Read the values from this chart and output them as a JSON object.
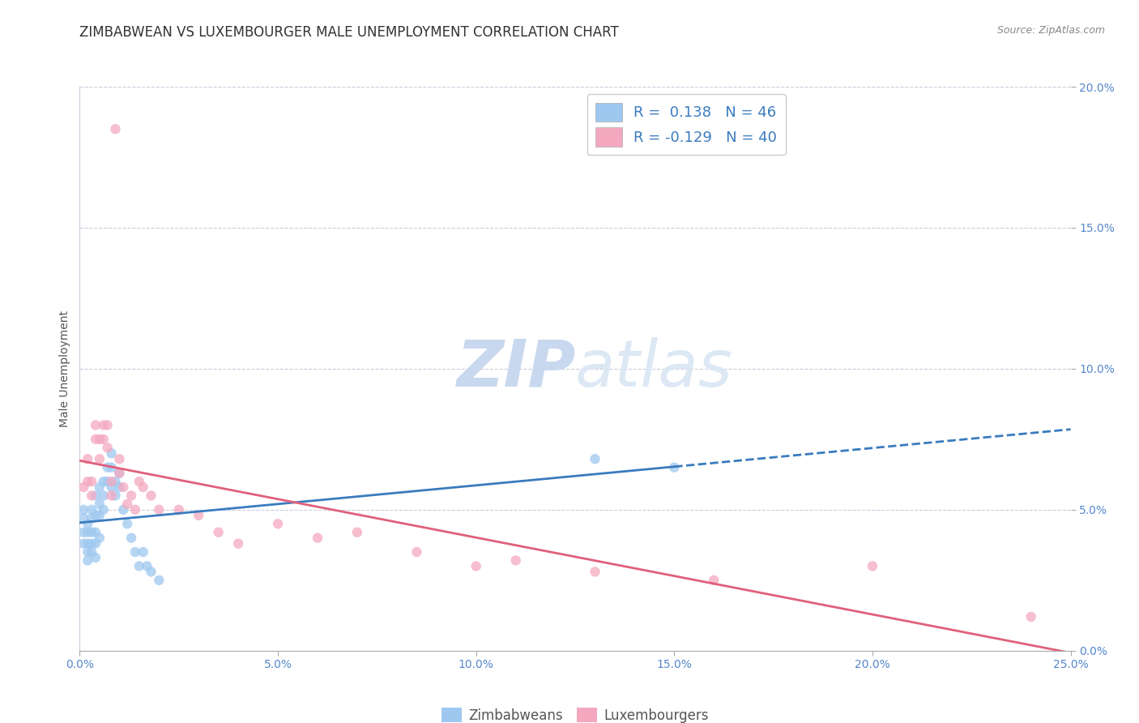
{
  "title": "ZIMBABWEAN VS LUXEMBOURGER MALE UNEMPLOYMENT CORRELATION CHART",
  "source": "Source: ZipAtlas.com",
  "ylabel_label": "Male Unemployment",
  "legend_labels": [
    "Zimbabweans",
    "Luxembourgers"
  ],
  "R_zimbabwean": 0.138,
  "N_zimbabwean": 46,
  "R_luxembourger": -0.129,
  "N_luxembourger": 40,
  "color_zimbabwean": "#9ec8f0",
  "color_luxembourger": "#f4a8c0",
  "color_line_zimbabwean": "#3a7bbf",
  "color_line_luxembourger": "#e0607a",
  "watermark_ZIP_color": "#c8d8ef",
  "watermark_atlas_color": "#c8d8ef",
  "title_fontsize": 12,
  "axis_tick_fontsize": 10,
  "legend_fontsize": 12,
  "background_color": "#ffffff",
  "grid_color": "#ccccdd",
  "xmin": 0.0,
  "xmax": 0.25,
  "ymin": 0.0,
  "ymax": 0.2,
  "x_ticks": [
    0.0,
    0.05,
    0.1,
    0.15,
    0.2,
    0.25
  ],
  "x_tick_labels": [
    "0.0%",
    "5.0%",
    "10.0%",
    "15.0%",
    "20.0%",
    "25.0%"
  ],
  "y_ticks": [
    0.0,
    0.05,
    0.1,
    0.15,
    0.2
  ],
  "y_tick_labels": [
    "0.0%",
    "5.0%",
    "10.0%",
    "15.0%",
    "20.0%"
  ],
  "zimbabwean_x": [
    0.001,
    0.001,
    0.001,
    0.001,
    0.002,
    0.002,
    0.002,
    0.002,
    0.002,
    0.003,
    0.003,
    0.003,
    0.003,
    0.003,
    0.004,
    0.004,
    0.004,
    0.004,
    0.004,
    0.005,
    0.005,
    0.005,
    0.005,
    0.006,
    0.006,
    0.006,
    0.007,
    0.007,
    0.008,
    0.008,
    0.008,
    0.009,
    0.009,
    0.01,
    0.01,
    0.011,
    0.012,
    0.013,
    0.014,
    0.015,
    0.016,
    0.017,
    0.018,
    0.02,
    0.13,
    0.15
  ],
  "zimbabwean_y": [
    0.05,
    0.047,
    0.042,
    0.038,
    0.045,
    0.042,
    0.038,
    0.035,
    0.032,
    0.05,
    0.047,
    0.042,
    0.038,
    0.035,
    0.055,
    0.048,
    0.042,
    0.038,
    0.033,
    0.058,
    0.052,
    0.048,
    0.04,
    0.06,
    0.055,
    0.05,
    0.065,
    0.06,
    0.07,
    0.065,
    0.058,
    0.06,
    0.055,
    0.063,
    0.058,
    0.05,
    0.045,
    0.04,
    0.035,
    0.03,
    0.035,
    0.03,
    0.028,
    0.025,
    0.068,
    0.065
  ],
  "luxembourger_x": [
    0.001,
    0.002,
    0.002,
    0.003,
    0.003,
    0.004,
    0.004,
    0.005,
    0.005,
    0.006,
    0.006,
    0.007,
    0.007,
    0.008,
    0.008,
    0.009,
    0.01,
    0.01,
    0.011,
    0.012,
    0.013,
    0.014,
    0.015,
    0.016,
    0.018,
    0.02,
    0.025,
    0.03,
    0.035,
    0.04,
    0.05,
    0.06,
    0.07,
    0.085,
    0.1,
    0.11,
    0.13,
    0.16,
    0.2,
    0.24
  ],
  "luxembourger_y": [
    0.058,
    0.068,
    0.06,
    0.06,
    0.055,
    0.08,
    0.075,
    0.075,
    0.068,
    0.08,
    0.075,
    0.08,
    0.072,
    0.06,
    0.055,
    0.185,
    0.068,
    0.063,
    0.058,
    0.052,
    0.055,
    0.05,
    0.06,
    0.058,
    0.055,
    0.05,
    0.05,
    0.048,
    0.042,
    0.038,
    0.045,
    0.04,
    0.042,
    0.035,
    0.03,
    0.032,
    0.028,
    0.025,
    0.03,
    0.012
  ],
  "zim_line_solid_end": 0.155,
  "zim_line_dash_start": 0.155
}
